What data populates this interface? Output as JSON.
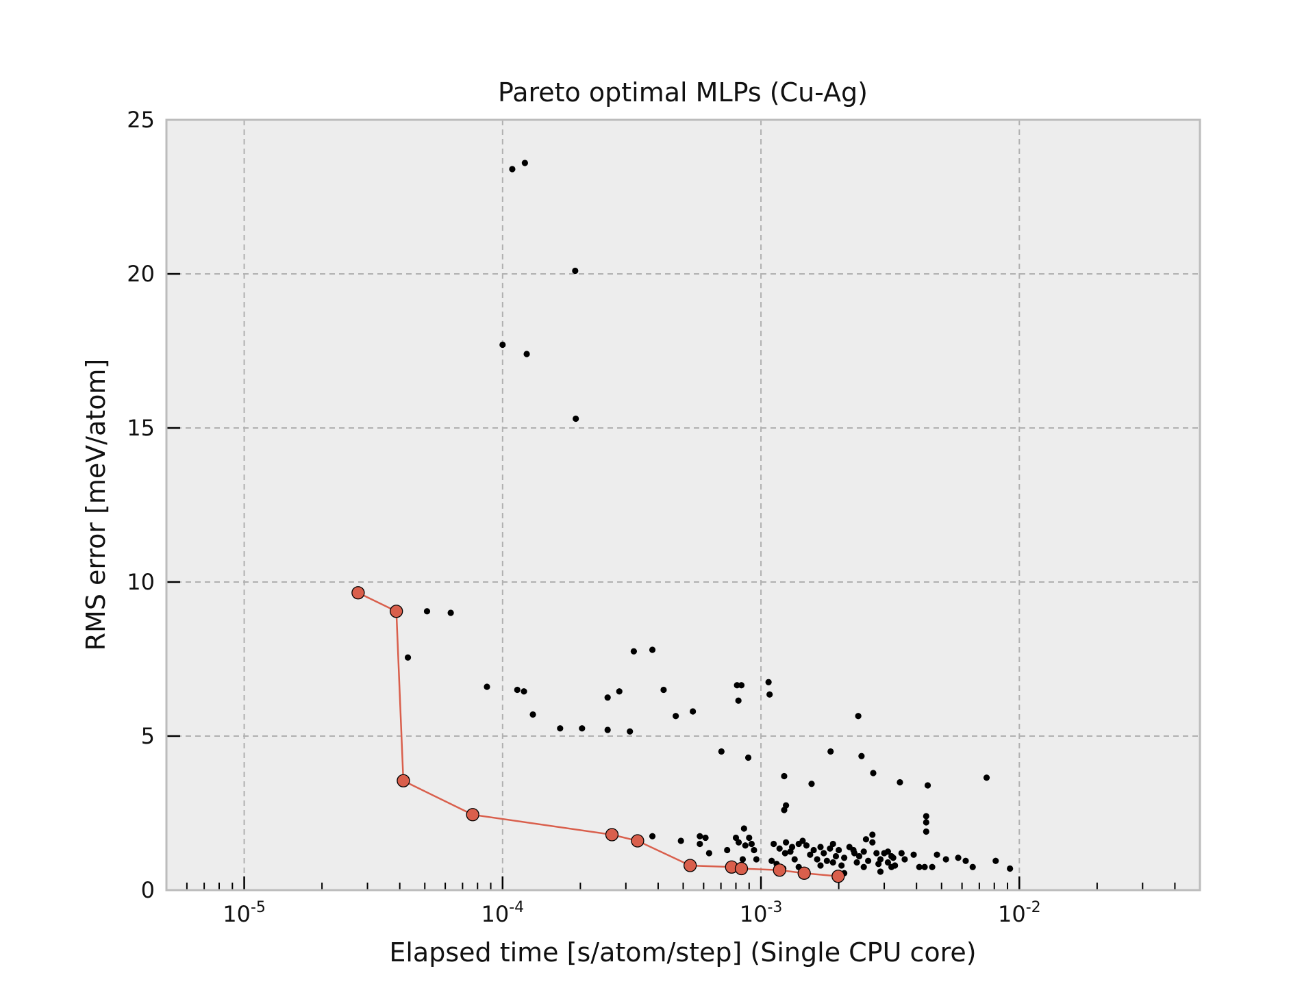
{
  "chart_data": {
    "type": "scatter",
    "title": "Pareto optimal MLPs (Cu-Ag)",
    "xlabel": "Elapsed time [s/atom/step] (Single CPU core)",
    "ylabel": "RMS error [meV/atom]",
    "xscale": "log",
    "xlim": [
      5e-06,
      0.05
    ],
    "ylim": [
      0,
      25
    ],
    "grid": true,
    "x_ticks": [
      {
        "value": 1e-05,
        "base": "10",
        "exp": "-5"
      },
      {
        "value": 0.0001,
        "base": "10",
        "exp": "-4"
      },
      {
        "value": 0.001,
        "base": "10",
        "exp": "-3"
      },
      {
        "value": 0.01,
        "base": "10",
        "exp": "-2"
      }
    ],
    "y_ticks": [
      {
        "value": 0,
        "label": "0"
      },
      {
        "value": 5,
        "label": "5"
      },
      {
        "value": 10,
        "label": "10"
      },
      {
        "value": 15,
        "label": "15"
      },
      {
        "value": 20,
        "label": "20"
      },
      {
        "value": 25,
        "label": "25"
      }
    ],
    "colors": {
      "background": "#ededed",
      "frame": "#bcbcbc",
      "grid": "#b0b0b0",
      "points": "#000000",
      "pareto": "#d95f4c"
    },
    "series": [
      {
        "kind": "points",
        "values": [
          [
            0.000109,
            23.4
          ],
          [
            0.000122,
            23.6
          ],
          [
            0.000191,
            20.1
          ],
          [
            0.0001,
            17.7
          ],
          [
            0.000124,
            17.4
          ],
          [
            0.000192,
            15.3
          ],
          [
            5.1e-05,
            9.05
          ],
          [
            6.3e-05,
            9.0
          ],
          [
            4.3e-05,
            7.55
          ],
          [
            8.7e-05,
            6.6
          ],
          [
            0.000114,
            6.5
          ],
          [
            0.000121,
            6.45
          ],
          [
            0.000131,
            5.7
          ],
          [
            0.000167,
            5.25
          ],
          [
            0.000203,
            5.25
          ],
          [
            0.000255,
            6.25
          ],
          [
            0.000283,
            6.45
          ],
          [
            0.000255,
            5.2
          ],
          [
            0.000311,
            5.15
          ],
          [
            0.000322,
            7.75
          ],
          [
            0.00038,
            7.8
          ],
          [
            0.00042,
            6.5
          ],
          [
            0.000468,
            5.65
          ],
          [
            0.000545,
            5.8
          ],
          [
            0.000703,
            4.5
          ],
          [
            0.000808,
            6.65
          ],
          [
            0.00084,
            6.65
          ],
          [
            0.000818,
            6.15
          ],
          [
            0.000893,
            4.3
          ],
          [
            0.00107,
            6.75
          ],
          [
            0.00108,
            6.35
          ],
          [
            0.00123,
            3.7
          ],
          [
            0.00123,
            2.6
          ],
          [
            0.00125,
            2.75
          ],
          [
            0.00157,
            3.45
          ],
          [
            0.00186,
            4.5
          ],
          [
            0.00238,
            5.65
          ],
          [
            0.00245,
            4.35
          ],
          [
            0.00272,
            3.8
          ],
          [
            0.00345,
            3.5
          ],
          [
            0.00442,
            3.4
          ],
          [
            0.00436,
            2.4
          ],
          [
            0.00436,
            2.2
          ],
          [
            0.00436,
            1.9
          ],
          [
            0.00747,
            3.65
          ],
          [
            0.00038,
            1.75
          ],
          [
            0.00049,
            1.6
          ],
          [
            0.00058,
            1.75
          ],
          [
            0.00061,
            1.7
          ],
          [
            0.00058,
            1.5
          ],
          [
            0.00063,
            1.2
          ],
          [
            0.00074,
            1.3
          ],
          [
            0.0008,
            1.7
          ],
          [
            0.00082,
            1.55
          ],
          [
            0.00086,
            2.0
          ],
          [
            0.0009,
            1.7
          ],
          [
            0.00092,
            1.5
          ],
          [
            0.00094,
            1.3
          ],
          [
            0.00096,
            1.0
          ],
          [
            0.00085,
            1.0
          ],
          [
            0.00087,
            1.45
          ],
          [
            0.00112,
            1.5
          ],
          [
            0.00118,
            1.35
          ],
          [
            0.00124,
            1.2
          ],
          [
            0.0013,
            1.25
          ],
          [
            0.00135,
            1.0
          ],
          [
            0.0014,
            1.5
          ],
          [
            0.00145,
            1.6
          ],
          [
            0.0015,
            1.45
          ],
          [
            0.00155,
            1.15
          ],
          [
            0.0016,
            1.3
          ],
          [
            0.00165,
            1.0
          ],
          [
            0.0017,
            1.4
          ],
          [
            0.00175,
            1.2
          ],
          [
            0.0018,
            0.95
          ],
          [
            0.00185,
            1.35
          ],
          [
            0.0019,
            1.5
          ],
          [
            0.00195,
            1.1
          ],
          [
            0.002,
            1.3
          ],
          [
            0.0021,
            1.05
          ],
          [
            0.0022,
            1.4
          ],
          [
            0.0023,
            1.2
          ],
          [
            0.00235,
            0.9
          ],
          [
            0.0024,
            1.1
          ],
          [
            0.0025,
            1.25
          ],
          [
            0.0026,
            0.95
          ],
          [
            0.0027,
            1.55
          ],
          [
            0.0028,
            1.2
          ],
          [
            0.00285,
            0.85
          ],
          [
            0.0029,
            1.0
          ],
          [
            0.003,
            1.2
          ],
          [
            0.0031,
            0.9
          ],
          [
            0.0032,
            1.1
          ],
          [
            0.0033,
            0.8
          ],
          [
            0.0035,
            1.2
          ],
          [
            0.0036,
            1.0
          ],
          [
            0.0039,
            1.15
          ],
          [
            0.0041,
            0.75
          ],
          [
            0.0043,
            0.75
          ],
          [
            0.0046,
            0.75
          ],
          [
            0.0048,
            1.15
          ],
          [
            0.0052,
            1.0
          ],
          [
            0.0058,
            1.05
          ],
          [
            0.0062,
            0.95
          ],
          [
            0.0066,
            0.75
          ],
          [
            0.0081,
            0.95
          ],
          [
            0.0092,
            0.7
          ],
          [
            0.0011,
            0.95
          ],
          [
            0.00115,
            0.85
          ],
          [
            0.00122,
            0.7
          ],
          [
            0.0014,
            0.75
          ],
          [
            0.0017,
            0.8
          ],
          [
            0.0019,
            0.9
          ],
          [
            0.00205,
            0.8
          ],
          [
            0.0021,
            0.55
          ],
          [
            0.0025,
            0.75
          ],
          [
            0.0029,
            0.6
          ],
          [
            0.0032,
            0.75
          ],
          [
            0.00125,
            1.55
          ],
          [
            0.00132,
            1.4
          ],
          [
            0.00228,
            1.3
          ],
          [
            0.00255,
            1.65
          ],
          [
            0.0027,
            1.8
          ],
          [
            0.0031,
            1.25
          ],
          [
            0.00325,
            1.05
          ]
        ]
      },
      {
        "kind": "pareto",
        "values": [
          [
            2.76e-05,
            9.65
          ],
          [
            3.88e-05,
            9.05
          ],
          [
            4.13e-05,
            3.55
          ],
          [
            7.66e-05,
            2.45
          ],
          [
            0.000265,
            1.8
          ],
          [
            0.000333,
            1.6
          ],
          [
            0.000532,
            0.8
          ],
          [
            0.00077,
            0.75
          ],
          [
            0.00084,
            0.7
          ],
          [
            0.00118,
            0.65
          ],
          [
            0.00147,
            0.55
          ],
          [
            0.00199,
            0.45
          ]
        ]
      }
    ]
  }
}
